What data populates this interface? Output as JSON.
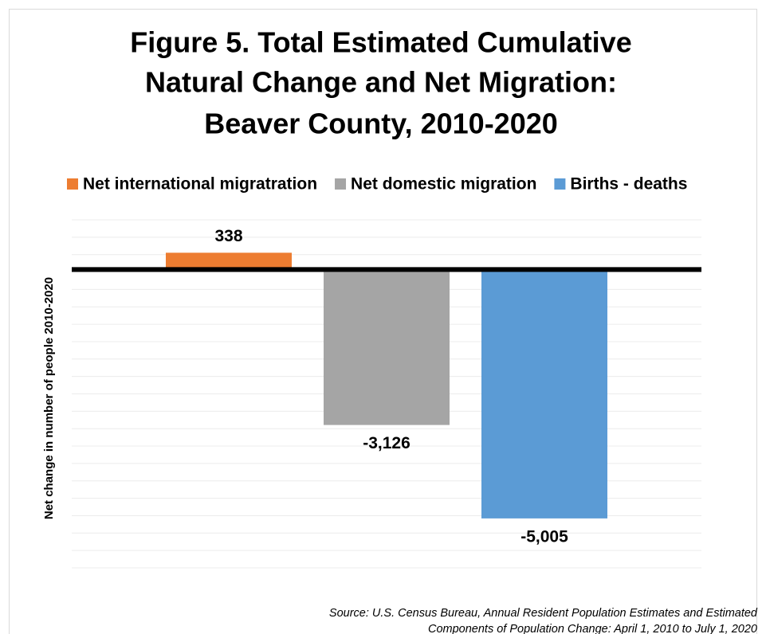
{
  "chart_data": {
    "type": "bar",
    "title": [
      "Figure 5. Total Estimated Cumulative",
      "Natural Change and Net Migration:",
      "Beaver County, 2010-2020"
    ],
    "y_label": "Net change in number of people 2010-2020",
    "categories": [
      null
    ],
    "series": [
      {
        "name": "Net international migratration",
        "color": "#ed7d31",
        "values": [
          338
        ],
        "value_labels": [
          "338"
        ]
      },
      {
        "name": "Net domestic migration",
        "color": "#a5a5a5",
        "values": [
          -3126
        ],
        "value_labels": [
          "-3,126"
        ]
      },
      {
        "name": "Births  - deaths",
        "color": "#5b9bd5",
        "values": [
          -5005
        ],
        "value_labels": [
          "-5,005"
        ]
      }
    ],
    "ylim": [
      -6000,
      1000
    ],
    "yticks": [
      -6000,
      -5650,
      -5300,
      -4950,
      -4600,
      -4250,
      -3900,
      -3550,
      -3200,
      -2850,
      -2500,
      -2150,
      -1800,
      -1450,
      -1100,
      -750,
      -400,
      -50,
      300,
      650,
      1000
    ],
    "grid": true,
    "legend": "top",
    "source": [
      "Source: U.S. Census Bureau, Annual Resident Population Estimates and Estimated",
      "Components of Population Change: April 1, 2010 to July 1, 2020"
    ]
  }
}
